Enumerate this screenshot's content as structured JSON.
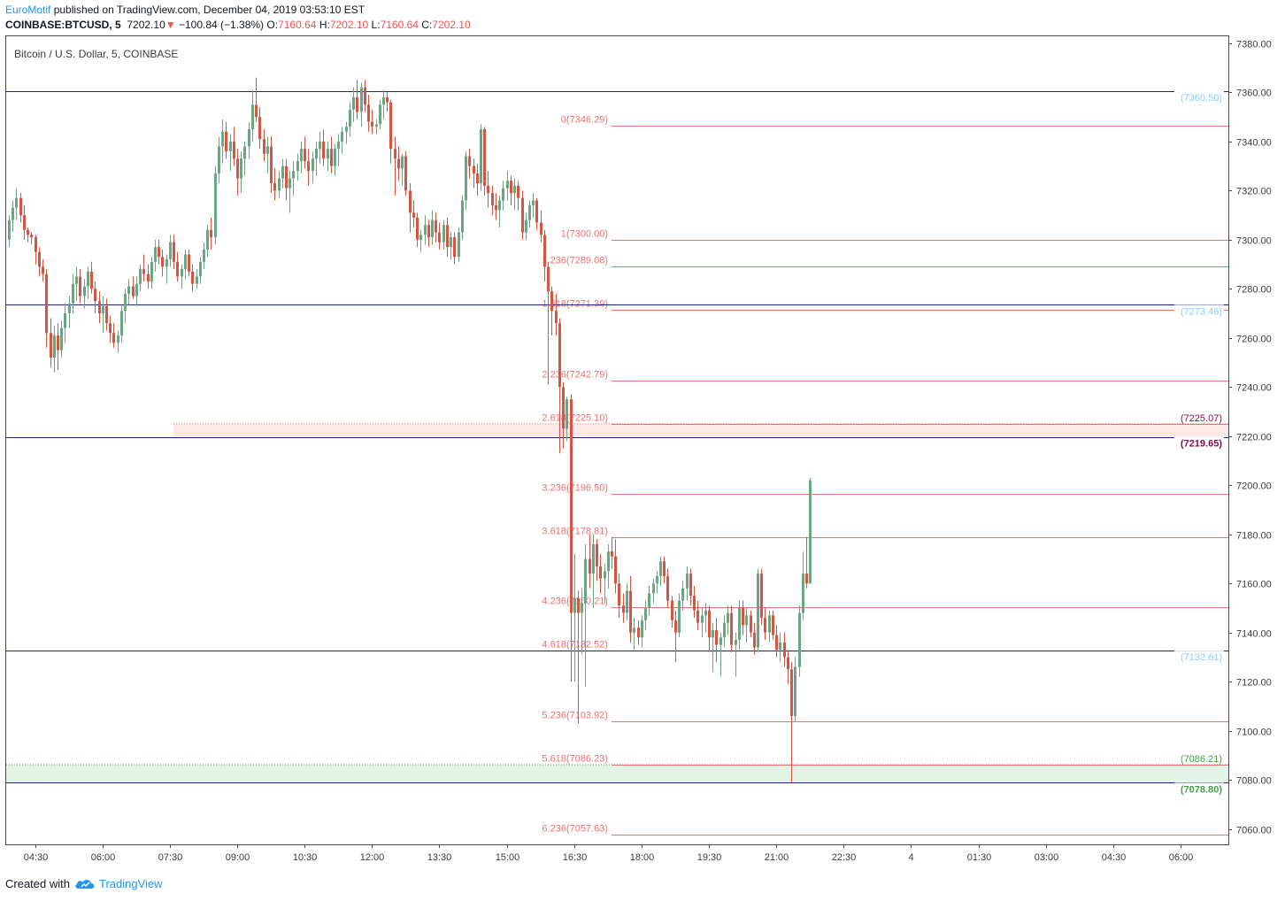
{
  "header": {
    "author": "EuroMotif",
    "published_text": "published on TradingView.com, December 04, 2019 03:53:10 EST",
    "symbol": "COINBASE:BTCUSD, 5",
    "last": "7202.10",
    "change_arrow": "▼",
    "change": "−100.84 (−1.38%)",
    "o_label": "O:",
    "o_value": "7160.64",
    "h_label": "H:",
    "h_value": "7202.10",
    "l_label": "L:",
    "l_value": "7160.64",
    "c_label": "C:",
    "c_value": "7202.10"
  },
  "footer": {
    "created_with": "Created with",
    "brand": "TradingView",
    "brand_icon": "tradingview-cloud-icon"
  },
  "colors": {
    "up": "#6ba583",
    "down": "#d75442",
    "fib": "#e57373",
    "hline": "#1a237e",
    "label_blue": "#90caf9",
    "label_maroon": "#880e4f",
    "label_green": "#43a047",
    "zone_red": "#fde8e8",
    "zone_green": "#e3f4e6"
  },
  "chart_data": {
    "type": "candlestick",
    "title": "Bitcoin / U.S. Dollar, 5, COINBASE",
    "ylim": [
      7055,
      7385
    ],
    "y_ticks": [
      "7380.00",
      "7360.00",
      "7340.00",
      "7320.00",
      "7300.00",
      "7280.00",
      "7260.00",
      "7240.00",
      "7220.00",
      "7200.00",
      "7180.00",
      "7160.00",
      "7140.00",
      "7120.00",
      "7100.00",
      "7080.00",
      "7060.00"
    ],
    "x_ticks": [
      "04:30",
      "06:00",
      "07:30",
      "09:00",
      "10:30",
      "12:00",
      "13:30",
      "15:00",
      "16:30",
      "18:00",
      "19:30",
      "21:00",
      "22:30",
      "4",
      "01:30",
      "03:00",
      "04:30",
      "06:00"
    ],
    "x_tick_bars": [
      7,
      25,
      43,
      61,
      79,
      97,
      115,
      133,
      151,
      169,
      187,
      205,
      223,
      241,
      259,
      277,
      295,
      313
    ],
    "horizontal_levels": [
      {
        "value": 7360.5,
        "label": "(7360.50)",
        "style": "blue"
      },
      {
        "value": 7273.46,
        "label": "(7273.46)",
        "style": "blue"
      },
      {
        "value": 7219.65,
        "label": "(7219.65)",
        "style": "maroon"
      },
      {
        "value": 7132.61,
        "label": "(7132.61)",
        "style": "blue"
      },
      {
        "value": 7078.8,
        "label": "(7078.80)",
        "style": "green"
      }
    ],
    "zones": [
      {
        "from": 7219.65,
        "to": 7225.07,
        "label": "(7225.07)",
        "style": "red"
      },
      {
        "from": 7078.8,
        "to": 7086.21,
        "label": "(7086.21)",
        "style": "green"
      }
    ],
    "fib_levels": [
      {
        "ratio": "0",
        "value": 7346.29
      },
      {
        "ratio": "1",
        "value": 7300.0
      },
      {
        "ratio": "1.236",
        "value": 7289.08
      },
      {
        "ratio": "1.618",
        "value": 7271.39
      },
      {
        "ratio": "2.236",
        "value": 7242.79
      },
      {
        "ratio": "2.618",
        "value": 7225.1
      },
      {
        "ratio": "3.236",
        "value": 7196.5
      },
      {
        "ratio": "3.618",
        "value": 7178.81
      },
      {
        "ratio": "4.236",
        "value": 7150.21
      },
      {
        "ratio": "4.618",
        "value": 7132.52
      },
      {
        "ratio": "5.236",
        "value": 7103.92
      },
      {
        "ratio": "5.618",
        "value": 7086.23
      },
      {
        "ratio": "6.236",
        "value": 7057.63
      }
    ],
    "fib_start_bar": 161,
    "red_zone_start_bar": 44,
    "candles": [
      [
        7300,
        7310,
        7297,
        7308
      ],
      [
        7308,
        7316,
        7303,
        7313
      ],
      [
        7313,
        7321,
        7308,
        7317
      ],
      [
        7317,
        7319,
        7307,
        7310
      ],
      [
        7310,
        7314,
        7300,
        7304
      ],
      [
        7304,
        7305,
        7299,
        7302
      ],
      [
        7302,
        7303,
        7298,
        7301
      ],
      [
        7301,
        7302,
        7290,
        7295
      ],
      [
        7295,
        7297,
        7285,
        7289
      ],
      [
        7289,
        7292,
        7283,
        7286
      ],
      [
        7286,
        7288,
        7256,
        7262
      ],
      [
        7262,
        7268,
        7248,
        7252
      ],
      [
        7252,
        7265,
        7246,
        7261
      ],
      [
        7261,
        7266,
        7247,
        7255
      ],
      [
        7255,
        7267,
        7252,
        7264
      ],
      [
        7264,
        7274,
        7258,
        7270
      ],
      [
        7270,
        7277,
        7264,
        7274
      ],
      [
        7274,
        7286,
        7270,
        7282
      ],
      [
        7282,
        7289,
        7275,
        7285
      ],
      [
        7285,
        7288,
        7274,
        7277
      ],
      [
        7277,
        7284,
        7272,
        7281
      ],
      [
        7281,
        7289,
        7276,
        7287
      ],
      [
        7287,
        7291,
        7278,
        7280
      ],
      [
        7280,
        7283,
        7270,
        7275
      ],
      [
        7275,
        7279,
        7266,
        7270
      ],
      [
        7270,
        7277,
        7262,
        7273
      ],
      [
        7273,
        7276,
        7263,
        7266
      ],
      [
        7266,
        7269,
        7258,
        7262
      ],
      [
        7262,
        7266,
        7256,
        7258
      ],
      [
        7258,
        7263,
        7254,
        7261
      ],
      [
        7261,
        7273,
        7258,
        7271
      ],
      [
        7271,
        7280,
        7266,
        7278
      ],
      [
        7278,
        7284,
        7273,
        7281
      ],
      [
        7281,
        7285,
        7276,
        7277
      ],
      [
        7277,
        7285,
        7273,
        7282
      ],
      [
        7282,
        7290,
        7279,
        7288
      ],
      [
        7288,
        7294,
        7283,
        7286
      ],
      [
        7286,
        7290,
        7280,
        7283
      ],
      [
        7283,
        7293,
        7280,
        7291
      ],
      [
        7291,
        7300,
        7287,
        7297
      ],
      [
        7297,
        7300,
        7290,
        7293
      ],
      [
        7293,
        7296,
        7285,
        7289
      ],
      [
        7289,
        7294,
        7282,
        7292
      ],
      [
        7292,
        7302,
        7289,
        7299
      ],
      [
        7299,
        7302,
        7288,
        7291
      ],
      [
        7291,
        7295,
        7283,
        7285
      ],
      [
        7285,
        7290,
        7280,
        7288
      ],
      [
        7288,
        7296,
        7284,
        7294
      ],
      [
        7294,
        7296,
        7285,
        7287
      ],
      [
        7287,
        7290,
        7279,
        7282
      ],
      [
        7282,
        7288,
        7280,
        7285
      ],
      [
        7285,
        7293,
        7282,
        7291
      ],
      [
        7291,
        7299,
        7288,
        7296
      ],
      [
        7296,
        7306,
        7293,
        7304
      ],
      [
        7304,
        7309,
        7296,
        7301
      ],
      [
        7301,
        7330,
        7298,
        7327
      ],
      [
        7327,
        7342,
        7323,
        7338
      ],
      [
        7338,
        7349,
        7331,
        7344
      ],
      [
        7344,
        7348,
        7333,
        7336
      ],
      [
        7336,
        7343,
        7328,
        7340
      ],
      [
        7340,
        7346,
        7330,
        7333
      ],
      [
        7333,
        7337,
        7318,
        7325
      ],
      [
        7325,
        7336,
        7319,
        7333
      ],
      [
        7333,
        7340,
        7326,
        7338
      ],
      [
        7338,
        7348,
        7333,
        7345
      ],
      [
        7345,
        7361,
        7340,
        7355
      ],
      [
        7355,
        7366,
        7348,
        7350
      ],
      [
        7350,
        7354,
        7337,
        7341
      ],
      [
        7341,
        7345,
        7332,
        7335
      ],
      [
        7335,
        7342,
        7327,
        7338
      ],
      [
        7338,
        7342,
        7319,
        7323
      ],
      [
        7323,
        7329,
        7316,
        7320
      ],
      [
        7320,
        7328,
        7317,
        7325
      ],
      [
        7325,
        7333,
        7321,
        7330
      ],
      [
        7330,
        7333,
        7316,
        7321
      ],
      [
        7321,
        7328,
        7311,
        7325
      ],
      [
        7325,
        7332,
        7318,
        7328
      ],
      [
        7328,
        7335,
        7324,
        7332
      ],
      [
        7332,
        7340,
        7327,
        7337
      ],
      [
        7337,
        7342,
        7329,
        7332
      ],
      [
        7332,
        7337,
        7322,
        7328
      ],
      [
        7328,
        7336,
        7323,
        7333
      ],
      [
        7333,
        7340,
        7326,
        7337
      ],
      [
        7337,
        7344,
        7331,
        7340
      ],
      [
        7340,
        7345,
        7330,
        7333
      ],
      [
        7333,
        7340,
        7328,
        7337
      ],
      [
        7337,
        7342,
        7327,
        7330
      ],
      [
        7330,
        7339,
        7326,
        7337
      ],
      [
        7337,
        7343,
        7330,
        7340
      ],
      [
        7340,
        7346,
        7335,
        7344
      ],
      [
        7344,
        7348,
        7339,
        7346
      ],
      [
        7346,
        7356,
        7342,
        7353
      ],
      [
        7353,
        7362,
        7348,
        7358
      ],
      [
        7358,
        7365,
        7349,
        7352
      ],
      [
        7352,
        7364,
        7346,
        7362
      ],
      [
        7362,
        7365,
        7352,
        7355
      ],
      [
        7355,
        7359,
        7344,
        7348
      ],
      [
        7348,
        7353,
        7343,
        7346
      ],
      [
        7346,
        7349,
        7343,
        7347
      ],
      [
        7347,
        7357,
        7345,
        7355
      ],
      [
        7355,
        7361,
        7349,
        7358
      ],
      [
        7358,
        7360,
        7352,
        7356
      ],
      [
        7356,
        7357,
        7331,
        7337
      ],
      [
        7337,
        7342,
        7318,
        7333
      ],
      [
        7333,
        7338,
        7324,
        7329
      ],
      [
        7329,
        7335,
        7322,
        7334
      ],
      [
        7334,
        7336,
        7318,
        7320
      ],
      [
        7320,
        7323,
        7303,
        7311
      ],
      [
        7311,
        7316,
        7305,
        7309
      ],
      [
        7309,
        7311,
        7297,
        7300
      ],
      [
        7300,
        7304,
        7295,
        7302
      ],
      [
        7302,
        7310,
        7298,
        7306
      ],
      [
        7306,
        7308,
        7297,
        7301
      ],
      [
        7301,
        7312,
        7298,
        7308
      ],
      [
        7308,
        7311,
        7299,
        7303
      ],
      [
        7303,
        7307,
        7296,
        7299
      ],
      [
        7299,
        7308,
        7296,
        7306
      ],
      [
        7306,
        7309,
        7293,
        7297
      ],
      [
        7297,
        7303,
        7292,
        7301
      ],
      [
        7301,
        7303,
        7290,
        7293
      ],
      [
        7293,
        7305,
        7291,
        7303
      ],
      [
        7303,
        7318,
        7300,
        7316
      ],
      [
        7316,
        7336,
        7312,
        7334
      ],
      [
        7334,
        7337,
        7325,
        7330
      ],
      [
        7330,
        7333,
        7321,
        7327
      ],
      [
        7327,
        7331,
        7318,
        7323
      ],
      [
        7323,
        7347,
        7320,
        7345
      ],
      [
        7345,
        7346,
        7318,
        7322
      ],
      [
        7322,
        7328,
        7313,
        7319
      ],
      [
        7319,
        7322,
        7310,
        7314
      ],
      [
        7314,
        7319,
        7308,
        7312
      ],
      [
        7312,
        7318,
        7305,
        7316
      ],
      [
        7316,
        7324,
        7312,
        7321
      ],
      [
        7321,
        7328,
        7316,
        7324
      ],
      [
        7324,
        7326,
        7314,
        7319
      ],
      [
        7319,
        7325,
        7312,
        7322
      ],
      [
        7322,
        7324,
        7312,
        7317
      ],
      [
        7317,
        7320,
        7300,
        7303
      ],
      [
        7303,
        7311,
        7300,
        7308
      ],
      [
        7308,
        7316,
        7305,
        7314
      ],
      [
        7314,
        7319,
        7309,
        7316
      ],
      [
        7316,
        7317,
        7304,
        7307
      ],
      [
        7307,
        7312,
        7299,
        7302
      ],
      [
        7302,
        7304,
        7283,
        7289
      ],
      [
        7289,
        7291,
        7241,
        7279
      ],
      [
        7279,
        7281,
        7261,
        7271
      ],
      [
        7271,
        7278,
        7261,
        7266
      ],
      [
        7266,
        7268,
        7213,
        7240
      ],
      [
        7240,
        7242,
        7215,
        7223
      ],
      [
        7223,
        7236,
        7218,
        7235
      ],
      [
        7235,
        7237,
        7120,
        7148
      ],
      [
        7148,
        7172,
        7120,
        7154
      ],
      [
        7154,
        7157,
        7103,
        7148
      ],
      [
        7148,
        7158,
        7131,
        7152
      ],
      [
        7152,
        7176,
        7118,
        7170
      ],
      [
        7170,
        7180,
        7158,
        7164
      ],
      [
        7164,
        7180,
        7150,
        7176
      ],
      [
        7176,
        7178,
        7161,
        7167
      ],
      [
        7167,
        7172,
        7156,
        7162
      ],
      [
        7162,
        7168,
        7152,
        7165
      ],
      [
        7165,
        7176,
        7158,
        7173
      ],
      [
        7173,
        7179,
        7166,
        7171
      ],
      [
        7171,
        7178,
        7156,
        7160
      ],
      [
        7160,
        7164,
        7146,
        7151
      ],
      [
        7151,
        7156,
        7144,
        7148
      ],
      [
        7148,
        7160,
        7145,
        7157
      ],
      [
        7157,
        7163,
        7136,
        7140
      ],
      [
        7140,
        7146,
        7133,
        7142
      ],
      [
        7142,
        7145,
        7135,
        7138
      ],
      [
        7138,
        7147,
        7134,
        7145
      ],
      [
        7145,
        7153,
        7141,
        7150
      ],
      [
        7150,
        7159,
        7147,
        7156
      ],
      [
        7156,
        7162,
        7152,
        7160
      ],
      [
        7160,
        7165,
        7156,
        7163
      ],
      [
        7163,
        7171,
        7159,
        7169
      ],
      [
        7169,
        7171,
        7160,
        7163
      ],
      [
        7163,
        7166,
        7150,
        7153
      ],
      [
        7153,
        7155,
        7142,
        7145
      ],
      [
        7145,
        7149,
        7128,
        7140
      ],
      [
        7140,
        7156,
        7138,
        7153
      ],
      [
        7153,
        7161,
        7149,
        7158
      ],
      [
        7158,
        7167,
        7153,
        7164
      ],
      [
        7164,
        7166,
        7151,
        7155
      ],
      [
        7155,
        7159,
        7146,
        7149
      ],
      [
        7149,
        7153,
        7141,
        7144
      ],
      [
        7144,
        7150,
        7138,
        7147
      ],
      [
        7147,
        7152,
        7140,
        7149
      ],
      [
        7149,
        7151,
        7132,
        7138
      ],
      [
        7138,
        7144,
        7124,
        7141
      ],
      [
        7141,
        7146,
        7128,
        7135
      ],
      [
        7135,
        7140,
        7122,
        7138
      ],
      [
        7138,
        7147,
        7134,
        7144
      ],
      [
        7144,
        7151,
        7139,
        7148
      ],
      [
        7148,
        7151,
        7132,
        7135
      ],
      [
        7135,
        7140,
        7122,
        7137
      ],
      [
        7137,
        7153,
        7133,
        7150
      ],
      [
        7150,
        7153,
        7139,
        7143
      ],
      [
        7143,
        7150,
        7136,
        7147
      ],
      [
        7147,
        7149,
        7138,
        7140
      ],
      [
        7140,
        7144,
        7131,
        7134
      ],
      [
        7134,
        7166,
        7132,
        7164
      ],
      [
        7164,
        7166,
        7143,
        7146
      ],
      [
        7146,
        7150,
        7137,
        7140
      ],
      [
        7140,
        7149,
        7136,
        7147
      ],
      [
        7147,
        7149,
        7137,
        7139
      ],
      [
        7139,
        7143,
        7130,
        7133
      ],
      [
        7133,
        7140,
        7128,
        7136
      ],
      [
        7136,
        7140,
        7126,
        7130
      ],
      [
        7130,
        7133,
        7119,
        7125
      ],
      [
        7125,
        7128,
        7079,
        7106
      ],
      [
        7106,
        7130,
        7104,
        7126
      ],
      [
        7126,
        7151,
        7122,
        7148
      ],
      [
        7148,
        7173,
        7145,
        7164
      ],
      [
        7164,
        7179,
        7158,
        7160
      ],
      [
        7160,
        7203,
        7160,
        7202
      ]
    ]
  }
}
